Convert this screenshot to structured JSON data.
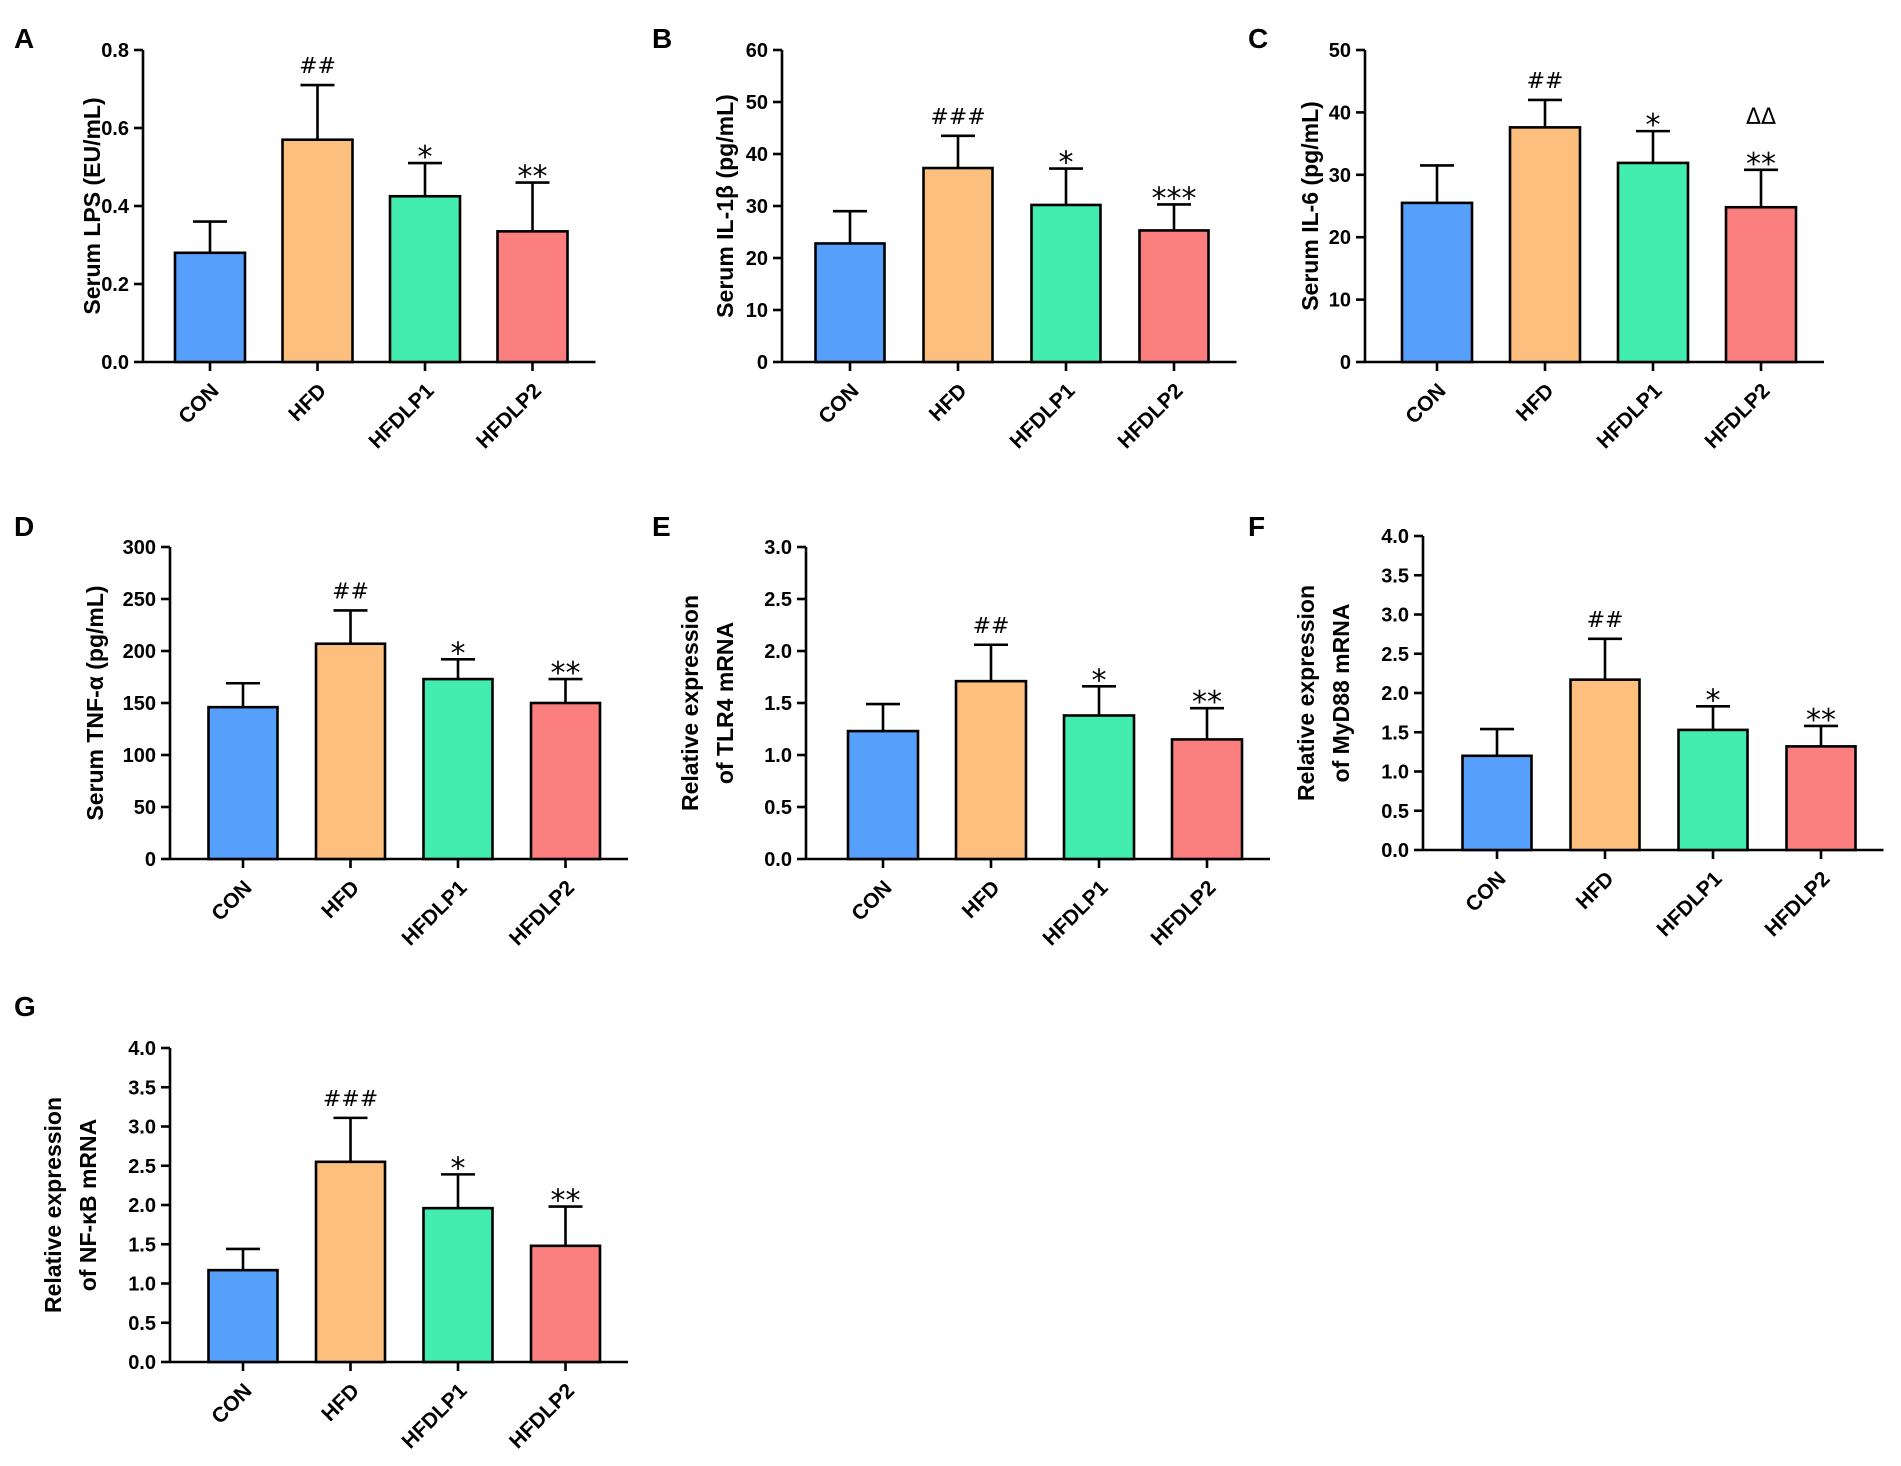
{
  "figure": {
    "categories": [
      "CON",
      "HFD",
      "HFDLP1",
      "HFDLP2"
    ]
  },
  "colors": {
    "CON": "#56a0fb",
    "HFD": "#fdbf7e",
    "HFDLP1": "#43edb0",
    "HFDLP2": "#fc7f80",
    "axis": "#000000"
  },
  "chart_data": [
    {
      "panel": "A",
      "type": "bar",
      "ylabel": [
        "Serum LPS (EU/mL)"
      ],
      "categories": [
        "CON",
        "HFD",
        "HFDLP1",
        "HFDLP2"
      ],
      "ylim": [
        0,
        0.8
      ],
      "yticks": [
        "0.0",
        "0.2",
        "0.4",
        "0.6",
        "0.8"
      ],
      "values": [
        0.28,
        0.57,
        0.425,
        0.335
      ],
      "errors": [
        0.08,
        0.14,
        0.085,
        0.125
      ],
      "significance": [
        [],
        [
          "##"
        ],
        [
          "*"
        ],
        [
          "**"
        ]
      ]
    },
    {
      "panel": "B",
      "type": "bar",
      "ylabel": [
        "Serum IL-1β (pg/mL)"
      ],
      "categories": [
        "CON",
        "HFD",
        "HFDLP1",
        "HFDLP2"
      ],
      "ylim": [
        0,
        60
      ],
      "yticks": [
        "0",
        "10",
        "20",
        "30",
        "40",
        "50",
        "60"
      ],
      "values": [
        22.8,
        37.3,
        30.2,
        25.3
      ],
      "errors": [
        6.2,
        6.2,
        7.0,
        5.0
      ],
      "significance": [
        [],
        [
          "###"
        ],
        [
          "*"
        ],
        [
          "***"
        ]
      ]
    },
    {
      "panel": "C",
      "type": "bar",
      "ylabel": [
        "Serum IL-6 (pg/mL)"
      ],
      "categories": [
        "CON",
        "HFD",
        "HFDLP1",
        "HFDLP2"
      ],
      "ylim": [
        0,
        50
      ],
      "yticks": [
        "0",
        "10",
        "20",
        "30",
        "40",
        "50"
      ],
      "values": [
        25.5,
        37.6,
        31.9,
        24.8
      ],
      "errors": [
        6.0,
        4.4,
        5.1,
        6.0
      ],
      "significance": [
        [],
        [
          "##"
        ],
        [
          "*"
        ],
        [
          "**",
          "ΔΔ"
        ]
      ]
    },
    {
      "panel": "D",
      "type": "bar",
      "ylabel": [
        "Serum TNF-α (pg/mL)"
      ],
      "categories": [
        "CON",
        "HFD",
        "HFDLP1",
        "HFDLP2"
      ],
      "ylim": [
        0,
        300
      ],
      "yticks": [
        "0",
        "50",
        "100",
        "150",
        "200",
        "250",
        "300"
      ],
      "values": [
        146,
        207,
        173,
        150
      ],
      "errors": [
        23,
        32,
        19,
        23
      ],
      "significance": [
        [],
        [
          "##"
        ],
        [
          "*"
        ],
        [
          "**"
        ]
      ]
    },
    {
      "panel": "E",
      "type": "bar",
      "ylabel": [
        "Relative expression",
        "of TLR4  mRNA"
      ],
      "categories": [
        "CON",
        "HFD",
        "HFDLP1",
        "HFDLP2"
      ],
      "ylim": [
        0,
        3.0
      ],
      "yticks": [
        "0.0",
        "0.5",
        "1.0",
        "1.5",
        "2.0",
        "2.5",
        "3.0"
      ],
      "values": [
        1.23,
        1.71,
        1.38,
        1.15
      ],
      "errors": [
        0.26,
        0.35,
        0.28,
        0.3
      ],
      "significance": [
        [],
        [
          "##"
        ],
        [
          "*"
        ],
        [
          "**"
        ]
      ]
    },
    {
      "panel": "F",
      "type": "bar",
      "ylabel": [
        "Relative expression",
        "of MyD88 mRNA"
      ],
      "categories": [
        "CON",
        "HFD",
        "HFDLP1",
        "HFDLP2"
      ],
      "ylim": [
        0,
        4.0
      ],
      "yticks": [
        "0.0",
        "0.5",
        "1.0",
        "1.5",
        "2.0",
        "2.5",
        "3.0",
        "3.5",
        "4.0"
      ],
      "values": [
        1.2,
        2.17,
        1.53,
        1.32
      ],
      "errors": [
        0.34,
        0.52,
        0.3,
        0.26
      ],
      "significance": [
        [],
        [
          "##"
        ],
        [
          "*"
        ],
        [
          "**"
        ]
      ]
    },
    {
      "panel": "G",
      "type": "bar",
      "ylabel": [
        "Relative expression",
        "of NF-κB mRNA"
      ],
      "categories": [
        "CON",
        "HFD",
        "HFDLP1",
        "HFDLP2"
      ],
      "ylim": [
        0,
        4.0
      ],
      "yticks": [
        "0.0",
        "0.5",
        "1.0",
        "1.5",
        "2.0",
        "2.5",
        "3.0",
        "3.5",
        "4.0"
      ],
      "values": [
        1.17,
        2.55,
        1.96,
        1.48
      ],
      "errors": [
        0.27,
        0.56,
        0.43,
        0.5
      ],
      "significance": [
        [],
        [
          "###"
        ],
        [
          "*"
        ],
        [
          "**"
        ]
      ]
    }
  ]
}
